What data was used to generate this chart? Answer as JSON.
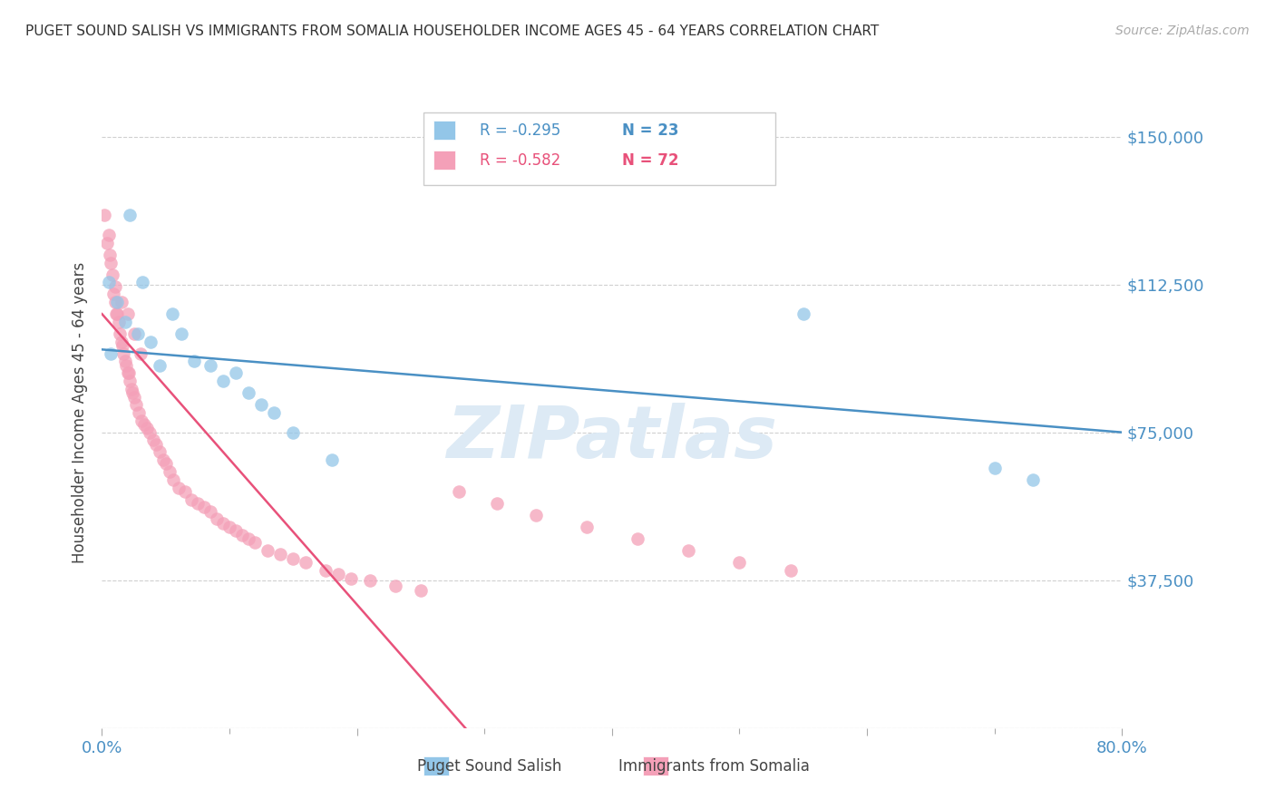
{
  "title": "PUGET SOUND SALISH VS IMMIGRANTS FROM SOMALIA HOUSEHOLDER INCOME AGES 45 - 64 YEARS CORRELATION CHART",
  "source": "Source: ZipAtlas.com",
  "ylabel": "Householder Income Ages 45 - 64 years",
  "xlim": [
    0.0,
    0.8
  ],
  "ylim": [
    0,
    160000
  ],
  "yticks": [
    0,
    37500,
    75000,
    112500,
    150000
  ],
  "ytick_labels": [
    "",
    "$37,500",
    "$75,000",
    "$112,500",
    "$150,000"
  ],
  "xticks": [
    0.0,
    0.2,
    0.4,
    0.6,
    0.8
  ],
  "xtick_labels": [
    "0.0%",
    "",
    "",
    "",
    "80.0%"
  ],
  "background_color": "#ffffff",
  "grid_color": "#d0d0d0",
  "blue_color": "#93c6e8",
  "pink_color": "#f4a0b8",
  "blue_line_color": "#4a90c4",
  "pink_line_color": "#e8517a",
  "axis_label_color": "#4a90c4",
  "watermark_color": "#ddeaf5",
  "watermark": "ZIPatlas",
  "legend_r_blue": "-0.295",
  "legend_n_blue": "23",
  "legend_r_pink": "-0.582",
  "legend_n_pink": "72",
  "legend_label_blue": "Puget Sound Salish",
  "legend_label_pink": "Immigrants from Somalia",
  "blue_x": [
    0.005,
    0.007,
    0.012,
    0.018,
    0.022,
    0.028,
    0.032,
    0.038,
    0.045,
    0.055,
    0.062,
    0.072,
    0.085,
    0.095,
    0.105,
    0.115,
    0.125,
    0.135,
    0.15,
    0.18,
    0.55,
    0.7,
    0.73
  ],
  "blue_y": [
    113000,
    95000,
    108000,
    103000,
    130000,
    100000,
    113000,
    98000,
    92000,
    105000,
    100000,
    93000,
    92000,
    88000,
    90000,
    85000,
    82000,
    80000,
    75000,
    68000,
    105000,
    66000,
    63000
  ],
  "pink_x": [
    0.002,
    0.004,
    0.005,
    0.006,
    0.007,
    0.008,
    0.009,
    0.01,
    0.011,
    0.012,
    0.013,
    0.014,
    0.015,
    0.016,
    0.017,
    0.018,
    0.019,
    0.02,
    0.021,
    0.022,
    0.023,
    0.024,
    0.025,
    0.027,
    0.029,
    0.031,
    0.033,
    0.035,
    0.037,
    0.04,
    0.042,
    0.045,
    0.048,
    0.05,
    0.053,
    0.056,
    0.06,
    0.065,
    0.07,
    0.075,
    0.08,
    0.085,
    0.09,
    0.095,
    0.1,
    0.105,
    0.11,
    0.115,
    0.12,
    0.13,
    0.14,
    0.15,
    0.16,
    0.175,
    0.185,
    0.195,
    0.21,
    0.23,
    0.25,
    0.28,
    0.31,
    0.34,
    0.38,
    0.42,
    0.46,
    0.5,
    0.54,
    0.01,
    0.015,
    0.02,
    0.025,
    0.03
  ],
  "pink_y": [
    130000,
    123000,
    125000,
    120000,
    118000,
    115000,
    110000,
    108000,
    105000,
    105000,
    103000,
    100000,
    98000,
    97000,
    95000,
    93000,
    92000,
    90000,
    90000,
    88000,
    86000,
    85000,
    84000,
    82000,
    80000,
    78000,
    77000,
    76000,
    75000,
    73000,
    72000,
    70000,
    68000,
    67000,
    65000,
    63000,
    61000,
    60000,
    58000,
    57000,
    56000,
    55000,
    53000,
    52000,
    51000,
    50000,
    49000,
    48000,
    47000,
    45000,
    44000,
    43000,
    42000,
    40000,
    39000,
    38000,
    37500,
    36000,
    35000,
    60000,
    57000,
    54000,
    51000,
    48000,
    45000,
    42000,
    40000,
    112000,
    108000,
    105000,
    100000,
    95000
  ],
  "blue_line_x": [
    0.0,
    0.8
  ],
  "blue_line_y": [
    96000,
    75000
  ],
  "pink_line_x": [
    0.0,
    0.285
  ],
  "pink_line_y": [
    105000,
    0
  ]
}
